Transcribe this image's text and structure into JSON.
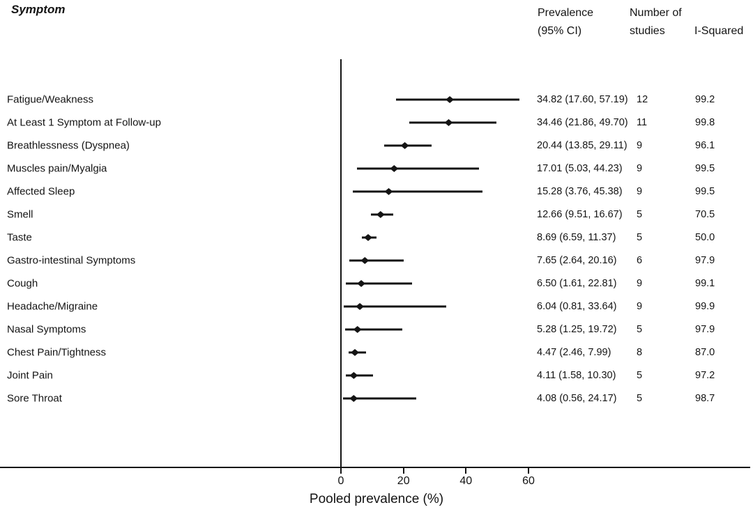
{
  "headers": {
    "symptom": "Symptom",
    "prevalence_line1": "Prevalence",
    "prevalence_line2": "(95% CI)",
    "studies_line1": "Number of",
    "studies_line2": "studies",
    "i_squared": "I-Squared"
  },
  "chart_data": {
    "type": "forest",
    "title": "",
    "xlabel": "Pooled prevalence (%)",
    "x_ticks": [
      0,
      20,
      40,
      60
    ],
    "x_axis_range_shown": [
      0,
      60
    ],
    "grid": false,
    "legend": false,
    "rows": [
      {
        "symptom": "Fatigue/Weakness",
        "prevalence": 34.82,
        "ci_low": 17.6,
        "ci_high": 57.19,
        "ci_text": "34.82 (17.60, 57.19)",
        "n_studies": "12",
        "i_squared": "99.2"
      },
      {
        "symptom": "At Least 1 Symptom at Follow-up",
        "prevalence": 34.46,
        "ci_low": 21.86,
        "ci_high": 49.7,
        "ci_text": "34.46 (21.86, 49.70)",
        "n_studies": "11",
        "i_squared": "99.8"
      },
      {
        "symptom": "Breathlessness (Dyspnea)",
        "prevalence": 20.44,
        "ci_low": 13.85,
        "ci_high": 29.11,
        "ci_text": "20.44 (13.85, 29.11)",
        "n_studies": "9",
        "i_squared": "96.1"
      },
      {
        "symptom": "Muscles pain/Myalgia",
        "prevalence": 17.01,
        "ci_low": 5.03,
        "ci_high": 44.23,
        "ci_text": "17.01 (5.03, 44.23)",
        "n_studies": "9",
        "i_squared": "99.5"
      },
      {
        "symptom": "Affected Sleep",
        "prevalence": 15.28,
        "ci_low": 3.76,
        "ci_high": 45.38,
        "ci_text": "15.28 (3.76, 45.38)",
        "n_studies": "9",
        "i_squared": "99.5"
      },
      {
        "symptom": "Smell",
        "prevalence": 12.66,
        "ci_low": 9.51,
        "ci_high": 16.67,
        "ci_text": "12.66 (9.51, 16.67)",
        "n_studies": "5",
        "i_squared": "70.5"
      },
      {
        "symptom": "Taste",
        "prevalence": 8.69,
        "ci_low": 6.59,
        "ci_high": 11.37,
        "ci_text": "8.69 (6.59, 11.37)",
        "n_studies": "5",
        "i_squared": "50.0"
      },
      {
        "symptom": "Gastro-intestinal Symptoms",
        "prevalence": 7.65,
        "ci_low": 2.64,
        "ci_high": 20.16,
        "ci_text": "7.65 (2.64, 20.16)",
        "n_studies": "6",
        "i_squared": "97.9"
      },
      {
        "symptom": "Cough",
        "prevalence": 6.5,
        "ci_low": 1.61,
        "ci_high": 22.81,
        "ci_text": "6.50 (1.61, 22.81)",
        "n_studies": "9",
        "i_squared": "99.1"
      },
      {
        "symptom": "Headache/Migraine",
        "prevalence": 6.04,
        "ci_low": 0.81,
        "ci_high": 33.64,
        "ci_text": "6.04 (0.81, 33.64)",
        "n_studies": "9",
        "i_squared": "99.9"
      },
      {
        "symptom": "Nasal Symptoms",
        "prevalence": 5.28,
        "ci_low": 1.25,
        "ci_high": 19.72,
        "ci_text": "5.28 (1.25, 19.72)",
        "n_studies": "5",
        "i_squared": "97.9"
      },
      {
        "symptom": "Chest Pain/Tightness",
        "prevalence": 4.47,
        "ci_low": 2.46,
        "ci_high": 7.99,
        "ci_text": "4.47 (2.46, 7.99)",
        "n_studies": "8",
        "i_squared": "87.0"
      },
      {
        "symptom": "Joint Pain",
        "prevalence": 4.11,
        "ci_low": 1.58,
        "ci_high": 10.3,
        "ci_text": "4.11 (1.58, 10.30)",
        "n_studies": "5",
        "i_squared": "97.2"
      },
      {
        "symptom": "Sore Throat",
        "prevalence": 4.08,
        "ci_low": 0.56,
        "ci_high": 24.17,
        "ci_text": "4.08 (0.56, 24.17)",
        "n_studies": "5",
        "i_squared": "98.7"
      }
    ]
  },
  "colors": {
    "ink": "#141414",
    "background": "#ffffff"
  }
}
